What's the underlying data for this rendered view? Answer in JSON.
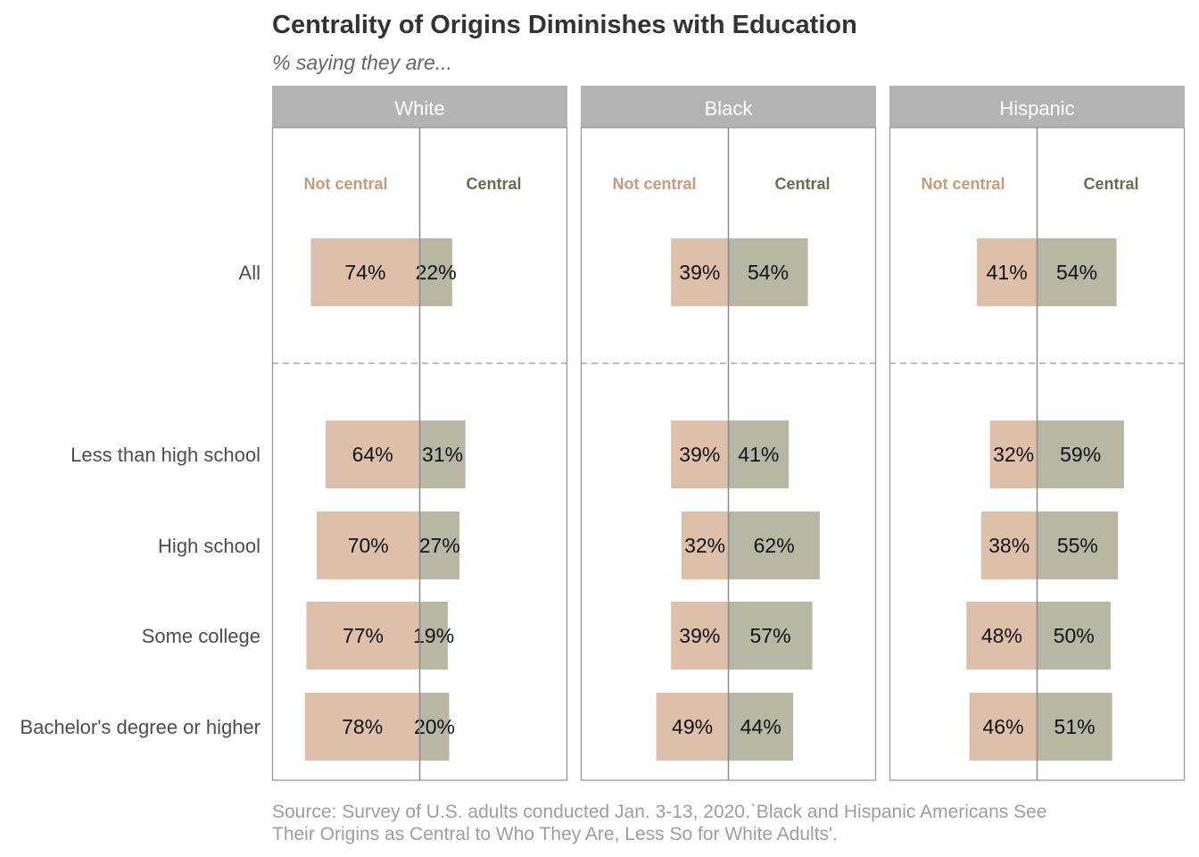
{
  "chart_data": {
    "type": "bar",
    "title": "Centrality of Origins Diminishes with Education",
    "subtitle": "% saying they are...",
    "caption_lines": [
      "Source: Survey of U.S. adults conducted Jan. 3-13, 2020.`Black and Hispanic Americans See",
      "Their Origins as Central to Who They Are, Less So for White Adults'."
    ],
    "categories": [
      "All",
      "Less than high school",
      "High school",
      "Some college",
      "Bachelor's degree or higher"
    ],
    "column_headers": {
      "not_central": "Not central",
      "central": "Central"
    },
    "colors": {
      "not_central": "#ddbfaa",
      "central": "#b7b7a3",
      "not_central_text": "#c99a7c",
      "central_text": "#6a6a55",
      "strip": "#b3b3b3"
    },
    "panels": [
      {
        "name": "White",
        "series": [
          {
            "name": "Not central",
            "values": [
              74,
              64,
              70,
              77,
              78
            ]
          },
          {
            "name": "Central",
            "values": [
              22,
              31,
              27,
              19,
              20
            ]
          }
        ]
      },
      {
        "name": "Black",
        "series": [
          {
            "name": "Not central",
            "values": [
              39,
              39,
              32,
              39,
              49
            ]
          },
          {
            "name": "Central",
            "values": [
              54,
              41,
              62,
              57,
              44
            ]
          }
        ]
      },
      {
        "name": "Hispanic",
        "series": [
          {
            "name": "Not central",
            "values": [
              41,
              32,
              38,
              48,
              46
            ]
          },
          {
            "name": "Central",
            "values": [
              54,
              59,
              55,
              50,
              51
            ]
          }
        ]
      }
    ],
    "label_suffix": "%"
  }
}
